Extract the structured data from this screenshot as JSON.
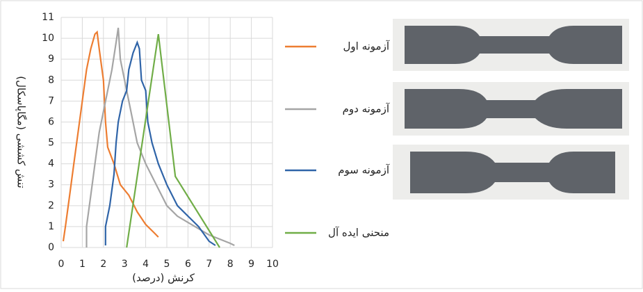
{
  "chart_data": {
    "type": "line",
    "x_label": "کرنش (درصد)",
    "y_label": "تنش کششی (مگاپاسکال)",
    "xlim": [
      0,
      10
    ],
    "xticks": [
      0,
      1,
      2,
      3,
      4,
      5,
      6,
      7,
      8,
      9,
      10
    ],
    "ylim": [
      0,
      11
    ],
    "yticks": [
      0,
      1,
      2,
      3,
      4,
      5,
      6,
      7,
      8,
      9,
      10,
      11
    ],
    "grid": true,
    "series": [
      {
        "name": "آزمونه اول",
        "color": "#ed7d31",
        "x": [
          0.1,
          0.2,
          0.4,
          0.6,
          0.8,
          1.0,
          1.2,
          1.4,
          1.6,
          1.7,
          1.8,
          2.0,
          2.1,
          2.2,
          2.5,
          2.8,
          3.2,
          3.6,
          4.0,
          4.4,
          4.6
        ],
        "values": [
          0.3,
          1,
          2.5,
          4,
          5.5,
          7,
          8.5,
          9.5,
          10.2,
          10.3,
          9.5,
          8,
          6,
          4.8,
          4,
          3,
          2.5,
          1.7,
          1.1,
          0.7,
          0.5
        ]
      },
      {
        "name": "آزمونه دوم",
        "color": "#a5a5a5",
        "x": [
          1.2,
          1.2,
          1.4,
          1.6,
          1.8,
          2.0,
          2.2,
          2.4,
          2.6,
          2.7,
          2.8,
          3.0,
          3.2,
          3.4,
          3.6,
          4.0,
          4.5,
          5.0,
          5.5,
          6.0,
          7.0,
          8.0,
          8.2
        ],
        "values": [
          0,
          1,
          2.5,
          4,
          5.5,
          6.5,
          7.5,
          8.5,
          9.8,
          10.5,
          9,
          8,
          7,
          6,
          5,
          4,
          3,
          2,
          1.5,
          1.2,
          0.6,
          0.2,
          0.1
        ]
      },
      {
        "name": "آزمونه سوم",
        "color": "#2f64a8",
        "x": [
          2.1,
          2.1,
          2.3,
          2.5,
          2.6,
          2.7,
          2.9,
          3.1,
          3.2,
          3.4,
          3.6,
          3.7,
          3.8,
          4.0,
          4.1,
          4.3,
          4.6,
          5.0,
          5.5,
          6.0,
          6.5,
          7.0,
          7.3
        ],
        "values": [
          0.1,
          1,
          2,
          3.5,
          5,
          6,
          7,
          7.5,
          8.5,
          9.3,
          9.8,
          9.5,
          8,
          7.5,
          6,
          5,
          4,
          3,
          2,
          1.5,
          1,
          0.3,
          0.1
        ]
      },
      {
        "name": "منحنی ایده آل",
        "color": "#70ad47",
        "x": [
          3.1,
          4.6,
          5.4,
          7.5
        ],
        "values": [
          0,
          10.2,
          3.4,
          0
        ]
      }
    ]
  }
}
